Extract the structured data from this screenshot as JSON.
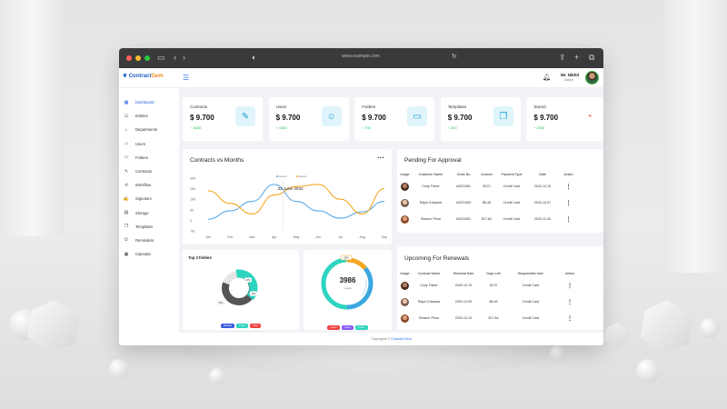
{
  "browser": {
    "url": "www.example.com"
  },
  "brand": {
    "name_part1": "Contract",
    "name_part2": "Gem"
  },
  "user": {
    "name": "Mr. Nikhil",
    "role": "Admin"
  },
  "sidebar": {
    "items": [
      {
        "label": "Dashboard",
        "icon": "grid-icon",
        "active": true
      },
      {
        "label": "Entities",
        "icon": "entities-icon"
      },
      {
        "label": "Departments",
        "icon": "departments-icon"
      },
      {
        "label": "Users",
        "icon": "users-icon"
      },
      {
        "label": "Folders",
        "icon": "folder-icon"
      },
      {
        "label": "Contracts",
        "icon": "contracts-icon"
      },
      {
        "label": "Workflow",
        "icon": "workflow-icon"
      },
      {
        "label": "Signature",
        "icon": "signature-icon"
      },
      {
        "label": "Storage",
        "icon": "storage-icon"
      },
      {
        "label": "Templates",
        "icon": "templates-icon"
      },
      {
        "label": "Reminders",
        "icon": "reminders-icon"
      },
      {
        "label": "Calendar",
        "icon": "calendar-icon"
      }
    ]
  },
  "stats": [
    {
      "title": "Contracts",
      "value": "$ 9.700",
      "change": "↑ 1688",
      "icon": "contract-edit-icon"
    },
    {
      "title": "Users",
      "value": "$ 9.700",
      "change": "↑ 1600",
      "icon": "user-add-icon"
    },
    {
      "title": "Folders",
      "value": "$ 9.700",
      "change": "↑ 700",
      "icon": "folder-icon"
    },
    {
      "title": "Templates",
      "value": "$ 9.700",
      "change": "↑ 300",
      "icon": "templates-icon"
    },
    {
      "title": "Stored",
      "value": "$ 9.700",
      "change": "↑ 2000",
      "icon": "donut-icon"
    }
  ],
  "line_chart": {
    "title": "Contracts vs Months",
    "tooltip": "22 June 2022",
    "chart_data": {
      "type": "line",
      "categories": [
        "Jan",
        "Feb",
        "Mar",
        "Apr",
        "May",
        "Jun",
        "Jul",
        "Aug",
        "Sep"
      ],
      "ylim": [
        -50,
        200
      ],
      "yticks": [
        200,
        150,
        100,
        50,
        0,
        -50
      ],
      "legend": [
        "Lorem",
        "Lorem"
      ],
      "series": [
        {
          "name": "Lorem",
          "color": "#5aa9e6",
          "values": [
            5,
            45,
            90,
            170,
            90,
            45,
            10,
            40,
            90
          ]
        },
        {
          "name": "Lorem",
          "color": "#f5a623",
          "values": [
            140,
            80,
            30,
            120,
            160,
            170,
            100,
            30,
            150
          ]
        }
      ]
    }
  },
  "folders_chart": {
    "title": "Top 3 folders",
    "callouts": [
      "22%",
      "15%",
      "35%"
    ],
    "legend": [
      {
        "label": "Manage",
        "color": "#3b5bdb"
      },
      {
        "label": "Loans",
        "color": "#2dd4bf"
      },
      {
        "label": "Files",
        "color": "#ef4444"
      }
    ]
  },
  "contracts_chart": {
    "value": "3986",
    "label": "Lorem",
    "tag": "25%",
    "legend": [
      {
        "label": "Lorem",
        "color": "#ef4444"
      },
      {
        "label": "Lorem",
        "color": "#8b5cf6"
      },
      {
        "label": "Lorem",
        "color": "#2dd4bf"
      }
    ]
  },
  "pending": {
    "title": "Pending For Approval",
    "headers": [
      "Image",
      "Customer Name",
      "Order No",
      "Amount",
      "Payment Type",
      "Date",
      "Action"
    ],
    "rows": [
      {
        "name": "Cody Fisher",
        "order": "#2021051",
        "amount": "$170",
        "payment": "Credit Card",
        "date": "2020-12-19"
      },
      {
        "name": "Ralph Edwards",
        "order": "#2021053",
        "amount": "$6.48",
        "payment": "Credit Card",
        "date": "2020-10-07"
      },
      {
        "name": "Eleanor Pena",
        "order": "#2021051",
        "amount": "$17.84",
        "payment": "Credit Card",
        "date": "2020-12-30"
      }
    ]
  },
  "renewals": {
    "title": "Upcoming For Renewals",
    "headers": [
      "Image",
      "Contract Name",
      "Renewal Date",
      "Days Left",
      "Responsible User",
      "Action"
    ],
    "rows": [
      {
        "name": "Cody Fisher",
        "date": "2020-12-19",
        "days": "$170",
        "user": "Credit Card"
      },
      {
        "name": "Ralph Edwards",
        "date": "2020-12-05",
        "days": "$6.48",
        "user": "Credit Card"
      },
      {
        "name": "Eleanor Pena",
        "date": "2020-12-19",
        "days": "$17.84",
        "user": "Credit Card"
      }
    ]
  },
  "footer": {
    "prefix": "Copyrights ©",
    "brand": "Contract Gem"
  }
}
